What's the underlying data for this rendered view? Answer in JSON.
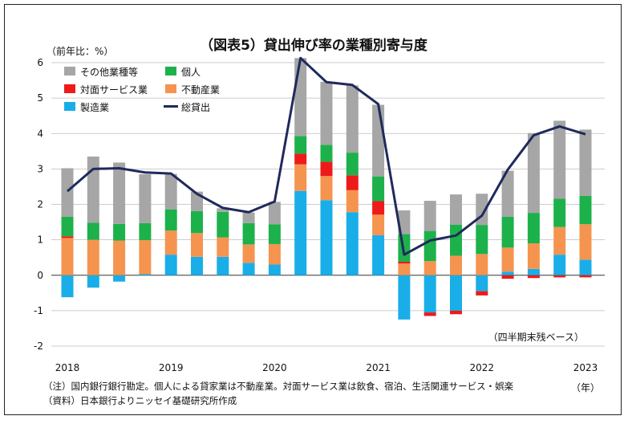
{
  "chart_data": {
    "type": "bar",
    "title": "（図表5）貸出伸び率の業種別寄与度",
    "ylabel": "（前年比：%）",
    "xlabel": "（年）",
    "note_basis": "（四半期末残ベース）",
    "ylim": [
      -2,
      6
    ],
    "yticks": [
      "-2",
      "-1",
      "0",
      "1",
      "2",
      "3",
      "4",
      "5",
      "6"
    ],
    "year_labels": [
      "2018",
      "2019",
      "2020",
      "2021",
      "2022",
      "2023"
    ],
    "grid": true,
    "legend_position": "top-left",
    "stacked": true,
    "x": [
      "2018Q1",
      "2018Q2",
      "2018Q3",
      "2018Q4",
      "2019Q1",
      "2019Q2",
      "2019Q3",
      "2019Q4",
      "2020Q1",
      "2020Q2",
      "2020Q3",
      "2020Q4",
      "2021Q1",
      "2021Q2",
      "2021Q3",
      "2021Q4",
      "2022Q1",
      "2022Q2",
      "2022Q3",
      "2022Q4",
      "2023Q1"
    ],
    "series": [
      {
        "name": "製造業",
        "color": "#19aee8",
        "values": [
          -0.62,
          -0.35,
          -0.18,
          0.03,
          0.58,
          0.52,
          0.52,
          0.35,
          0.3,
          2.38,
          2.12,
          1.78,
          1.13,
          -1.25,
          -1.05,
          -1.0,
          -0.45,
          0.1,
          0.18,
          0.58,
          0.44
        ]
      },
      {
        "name": "不動産業",
        "color": "#f5944f",
        "values": [
          1.05,
          1.0,
          0.98,
          0.96,
          0.68,
          0.67,
          0.55,
          0.52,
          0.58,
          0.75,
          0.68,
          0.62,
          0.58,
          0.33,
          0.4,
          0.55,
          0.6,
          0.68,
          0.72,
          0.78,
          1.0
        ]
      },
      {
        "name": "対面サービス業",
        "color": "#ee1a1a",
        "values": [
          0.05,
          0.0,
          0.0,
          0.0,
          0.0,
          0.0,
          0.0,
          0.0,
          0.0,
          0.3,
          0.4,
          0.42,
          0.38,
          0.05,
          -0.1,
          -0.1,
          -0.12,
          -0.1,
          -0.08,
          -0.06,
          -0.06
        ]
      },
      {
        "name": "個人",
        "color": "#1db14b",
        "values": [
          0.55,
          0.48,
          0.47,
          0.48,
          0.6,
          0.62,
          0.72,
          0.6,
          0.56,
          0.5,
          0.48,
          0.64,
          0.7,
          0.78,
          0.85,
          0.88,
          0.82,
          0.87,
          0.86,
          0.8,
          0.8
        ]
      },
      {
        "name": "その他業種等",
        "color": "#a6a6a6",
        "values": [
          1.37,
          1.87,
          1.73,
          1.38,
          1.0,
          0.55,
          0.1,
          0.3,
          0.63,
          2.2,
          1.78,
          1.9,
          2.02,
          0.67,
          0.85,
          0.85,
          0.88,
          1.3,
          2.25,
          2.2,
          1.87
        ]
      }
    ],
    "total_series": {
      "name": "総貸出",
      "color": "#1f2a5c",
      "values": [
        2.37,
        3.0,
        3.02,
        2.9,
        2.87,
        2.3,
        1.9,
        1.78,
        2.08,
        6.13,
        5.45,
        5.37,
        4.83,
        0.58,
        0.98,
        1.12,
        1.68,
        2.98,
        3.95,
        4.2,
        3.98
      ]
    },
    "legend": [
      {
        "label": "その他業種等",
        "color": "#a6a6a6",
        "kind": "box"
      },
      {
        "label": "個人",
        "color": "#1db14b",
        "kind": "box"
      },
      {
        "label": "対面サービス業",
        "color": "#ee1a1a",
        "kind": "box"
      },
      {
        "label": "不動産業",
        "color": "#f5944f",
        "kind": "box"
      },
      {
        "label": "製造業",
        "color": "#19aee8",
        "kind": "box"
      },
      {
        "label": "総貸出",
        "color": "#1f2a5c",
        "kind": "line"
      }
    ]
  },
  "footnotes": {
    "note1": "（注）国内銀行銀行勘定。個人による貸家業は不動産業。対面サービス業は飲食、宿泊、生活関連サービス・娯楽",
    "note2": "（資料）日本銀行よりニッセイ基礎研究所作成"
  }
}
